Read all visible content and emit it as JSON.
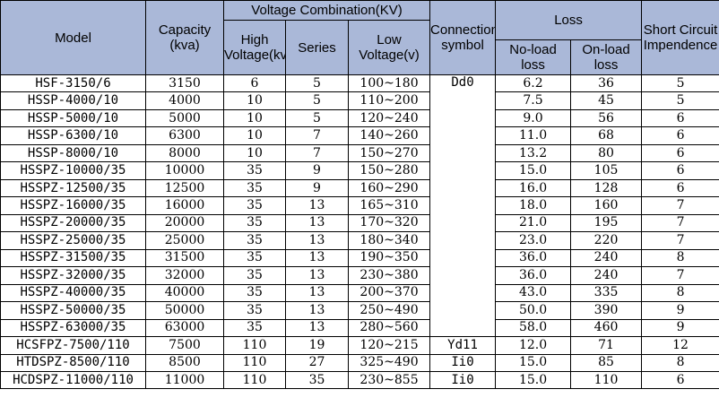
{
  "headers": {
    "model": "Model",
    "capacity": "Capacity (kva)",
    "voltage_group": "Voltage Combination(KV)",
    "high_voltage": "High Voltage(kv)",
    "series": "Series",
    "low_voltage": "Low Voltage(v)",
    "connection": "Connection symbol",
    "loss_group": "Loss",
    "no_load_loss": "No-load loss",
    "on_load_loss": "On-load loss",
    "short_circuit": "Short Circuit Impendence"
  },
  "rows": [
    {
      "model": "HSF-3150/6",
      "capacity": "3150",
      "hv": "6",
      "series": "5",
      "lv": "100~180",
      "nl": "6.2",
      "ol": "36",
      "sc": "5"
    },
    {
      "model": "HSSP-4000/10",
      "capacity": "4000",
      "hv": "10",
      "series": "5",
      "lv": "110~200",
      "nl": "7.5",
      "ol": "45",
      "sc": "5"
    },
    {
      "model": "HSSP-5000/10",
      "capacity": "5000",
      "hv": "10",
      "series": "5",
      "lv": "120~240",
      "nl": "9.0",
      "ol": "56",
      "sc": "6"
    },
    {
      "model": "HSSP-6300/10",
      "capacity": "6300",
      "hv": "10",
      "series": "7",
      "lv": "140~260",
      "nl": "11.0",
      "ol": "68",
      "sc": "6"
    },
    {
      "model": "HSSP-8000/10",
      "capacity": "8000",
      "hv": "10",
      "series": "7",
      "lv": "150~270",
      "nl": "13.2",
      "ol": "80",
      "sc": "6"
    },
    {
      "model": "HSSPZ-10000/35",
      "capacity": "10000",
      "hv": "35",
      "series": "9",
      "lv": "150~280",
      "nl": "15.0",
      "ol": "105",
      "sc": "6"
    },
    {
      "model": "HSSPZ-12500/35",
      "capacity": "12500",
      "hv": "35",
      "series": "9",
      "lv": "160~290",
      "nl": "16.0",
      "ol": "128",
      "sc": "6"
    },
    {
      "model": "HSSPZ-16000/35",
      "capacity": "16000",
      "hv": "35",
      "series": "13",
      "lv": "165~310",
      "nl": "18.0",
      "ol": "160",
      "sc": "7"
    },
    {
      "model": "HSSPZ-20000/35",
      "capacity": "20000",
      "hv": "35",
      "series": "13",
      "lv": "170~320",
      "nl": "21.0",
      "ol": "195",
      "sc": "7"
    },
    {
      "model": "HSSPZ-25000/35",
      "capacity": "25000",
      "hv": "35",
      "series": "13",
      "lv": "180~340",
      "nl": "23.0",
      "ol": "220",
      "sc": "7"
    },
    {
      "model": "HSSPZ-31500/35",
      "capacity": "31500",
      "hv": "35",
      "series": "13",
      "lv": "190~350",
      "nl": "36.0",
      "ol": "240",
      "sc": "8"
    },
    {
      "model": "HSSPZ-32000/35",
      "capacity": "32000",
      "hv": "35",
      "series": "13",
      "lv": "230~380",
      "nl": "36.0",
      "ol": "240",
      "sc": "7"
    },
    {
      "model": "HSSPZ-40000/35",
      "capacity": "40000",
      "hv": "35",
      "series": "13",
      "lv": "200~370",
      "nl": "43.0",
      "ol": "335",
      "sc": "8"
    },
    {
      "model": "HSSPZ-50000/35",
      "capacity": "50000",
      "hv": "35",
      "series": "13",
      "lv": "250~490",
      "nl": "50.0",
      "ol": "390",
      "sc": "9"
    },
    {
      "model": "HSSPZ-63000/35",
      "capacity": "63000",
      "hv": "35",
      "series": "13",
      "lv": "280~560",
      "nl": "58.0",
      "ol": "460",
      "sc": "9"
    },
    {
      "model": "HCSFPZ-7500/110",
      "capacity": "7500",
      "hv": "110",
      "series": "19",
      "lv": "120~215",
      "conn": "Yd11",
      "nl": "12.0",
      "ol": "71",
      "sc": "12"
    },
    {
      "model": "HTDSPZ-8500/110",
      "capacity": "8500",
      "hv": "110",
      "series": "27",
      "lv": "325~490",
      "conn": "Ii0",
      "nl": "15.0",
      "ol": "85",
      "sc": "8"
    },
    {
      "model": "HCDSPZ-11000/110",
      "capacity": "11000",
      "hv": "110",
      "series": "35",
      "lv": "230~855",
      "conn": "Ii0",
      "nl": "15.0",
      "ol": "110",
      "sc": "6"
    }
  ],
  "merged_connection": "Dd0",
  "colors": {
    "header_bg": "#aab8d8",
    "border": "#000000",
    "cell_bg": "#ffffff"
  }
}
